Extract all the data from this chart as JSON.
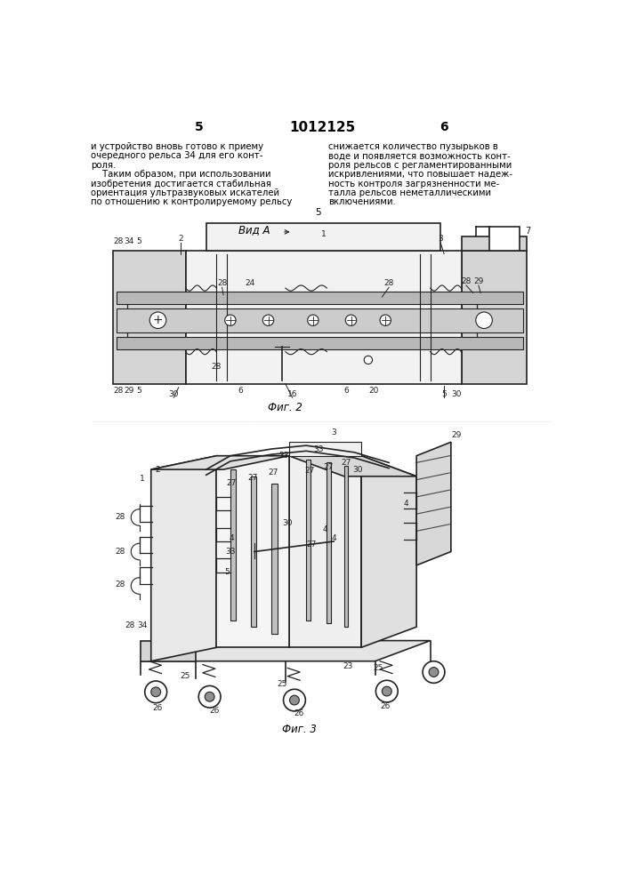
{
  "page_number_left": "5",
  "page_number_center": "1012125",
  "page_number_right": "6",
  "text_left_lines": [
    "и устройство вновь готово к приему",
    "очередного рельса 34 для его конт-",
    "роля.",
    "    Таким образом, при использовании",
    "изобретения достигается стабильная",
    "ориентация ультразвуковых искателей",
    "по отношению к контролируемому рельсу"
  ],
  "text_right_lines": [
    "снижается количество пузырьков в",
    "воде и появляется возможность конт-",
    "роля рельсов с регламентированными",
    "искривлениями, что повышает надеж-",
    "ность контроля загрязненности ме-",
    "талла рельсов неметаллическими",
    "включениями."
  ],
  "center_5": "5",
  "fig2_label": "Фиг. 2",
  "fig3_label": "Фиг. 3",
  "vid_a_label": "Вид A",
  "bg_color": "#ffffff",
  "text_color": "#000000",
  "line_color": "#222222"
}
